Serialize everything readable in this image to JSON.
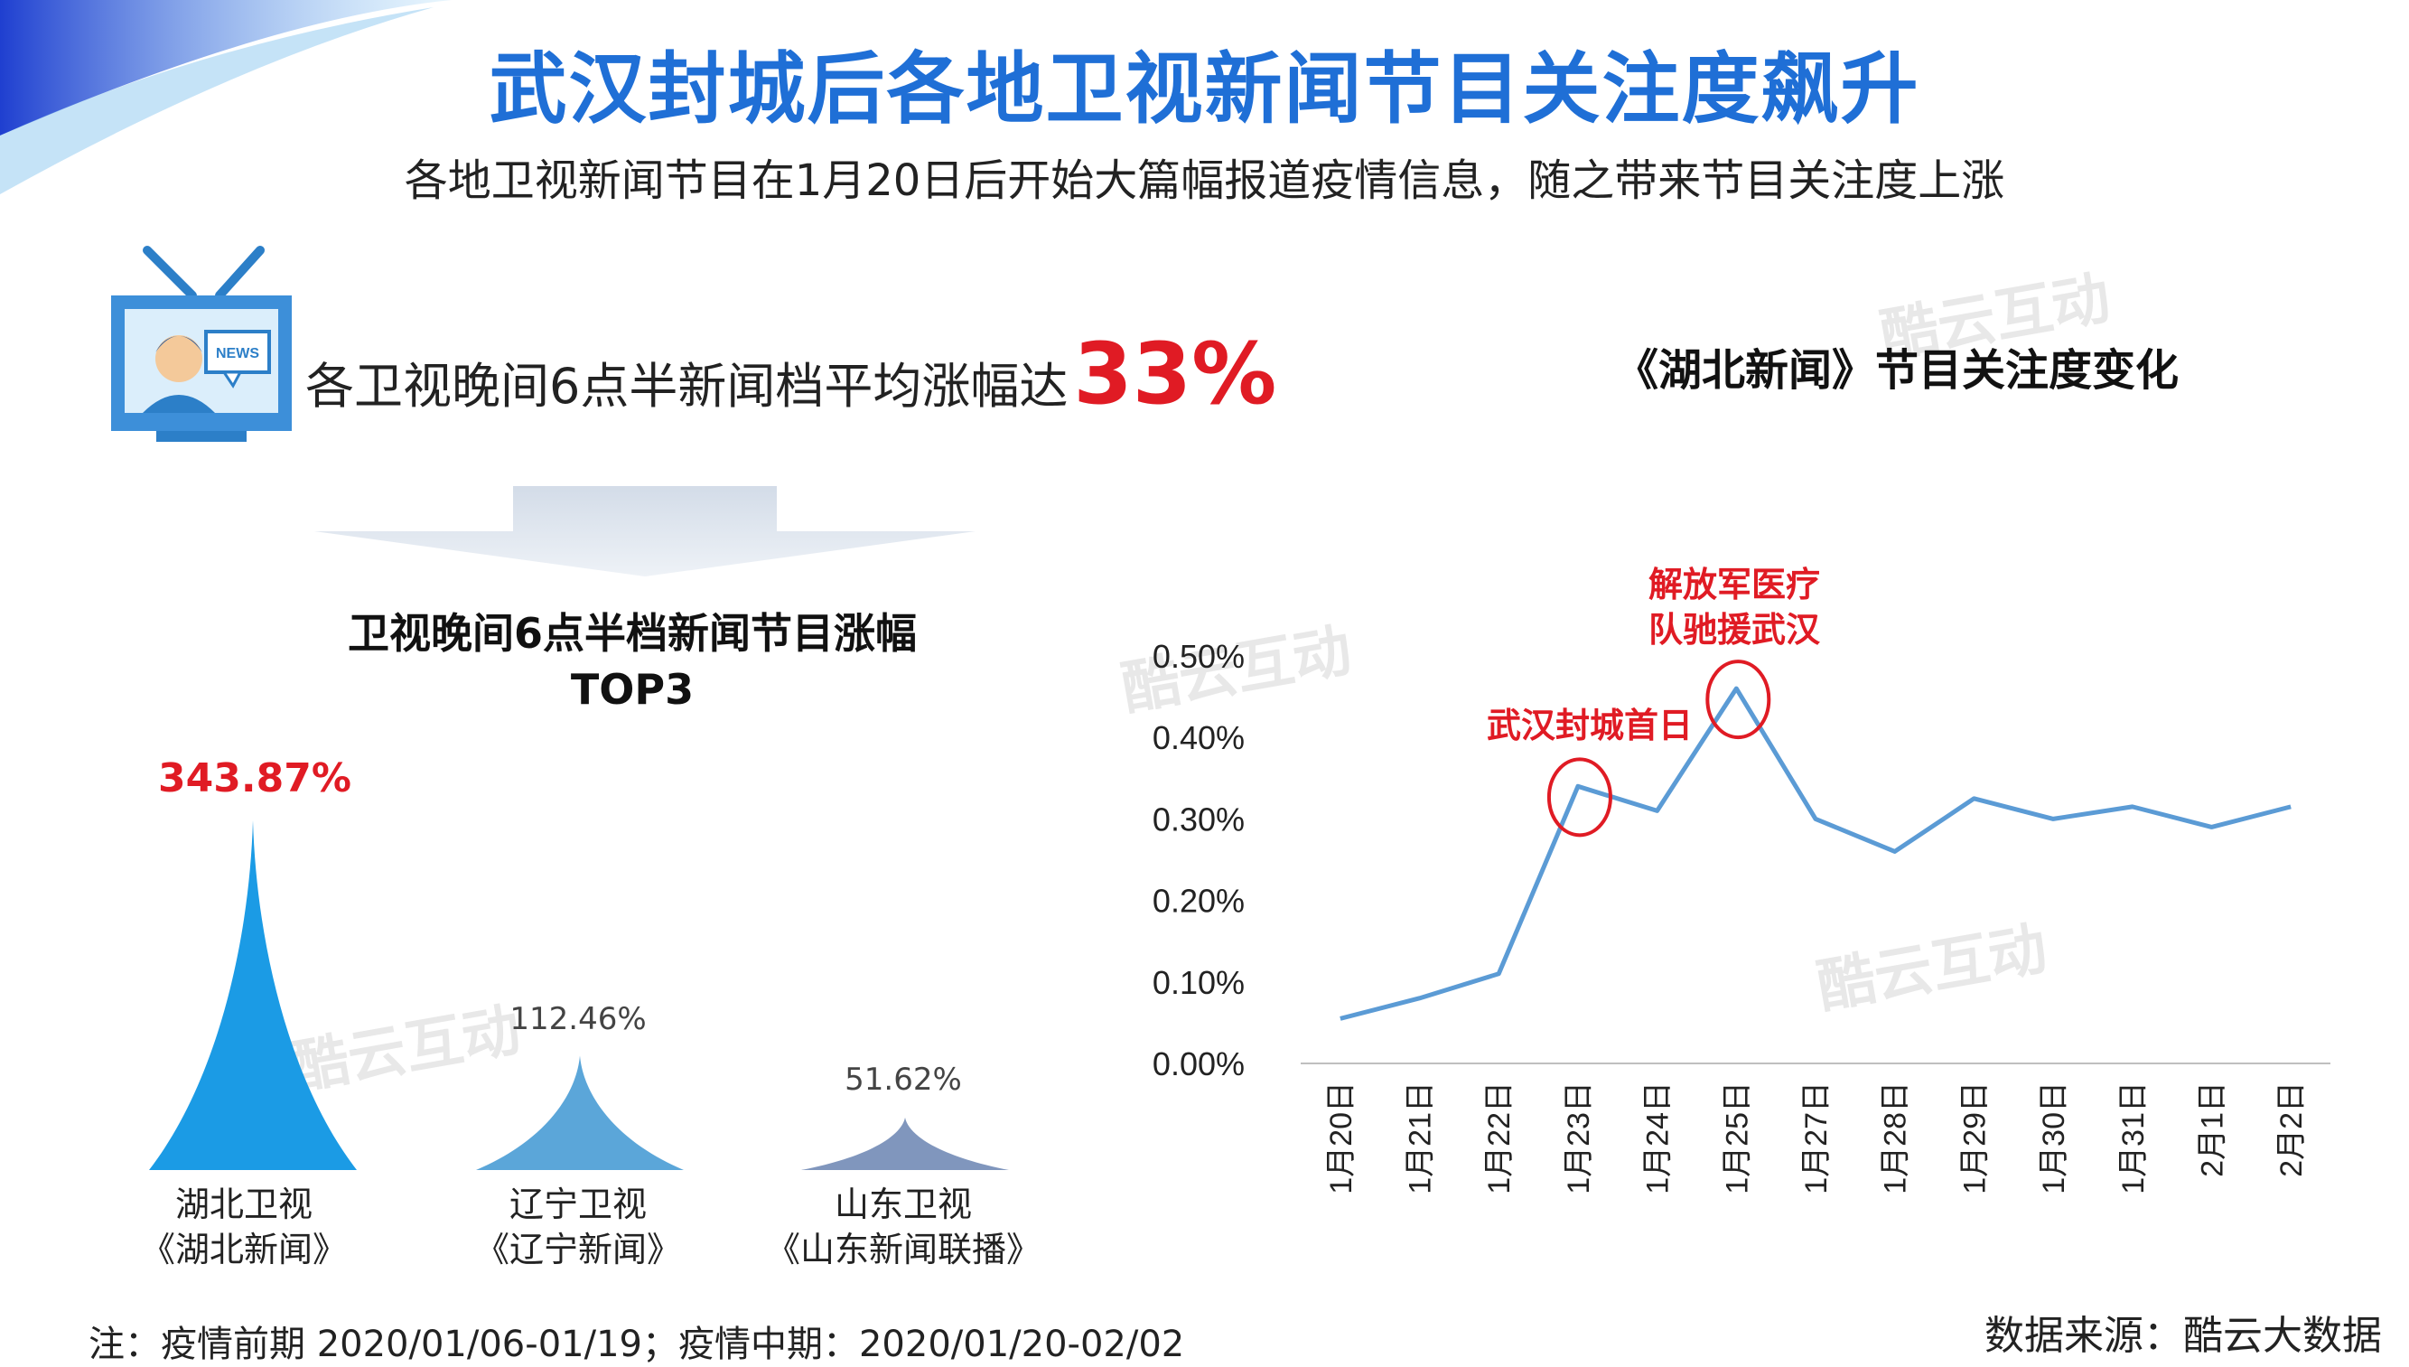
{
  "title": "武汉封城后各地卫视新闻节目关注度飙升",
  "subtitle": "各地卫视新闻节目在1月20日后开始大篇幅报道疫情信息，随之带来节目关注度上涨",
  "headline": {
    "text": "各卫视晚间6点半新闻档平均涨幅达",
    "value": "33%"
  },
  "tv_icon": {
    "badge": "NEWS"
  },
  "watermark": "酷云互动",
  "left_panel": {
    "title_line1": "卫视晚间6点半档新闻节目涨幅",
    "title_line2": "TOP3"
  },
  "right_panel": {
    "title": "《湖北新闻》节目关注度变化"
  },
  "annotations": {
    "lockdown": "武汉封城首日",
    "pla_line1": "解放军医疗",
    "pla_line2": "队驰援武汉"
  },
  "note": "注：疫情前期 2020/01/06-01/19；疫情中期：2020/01/20-02/02",
  "source": "数据来源：酷云大数据",
  "colors": {
    "title": "#1f6fd6",
    "highlight": "#e01b24",
    "line": "#5b9bd5",
    "bar1": "#1b9be5",
    "bar2": "#5ba6d9",
    "bar3": "#8096bd"
  },
  "chart_data": [
    {
      "type": "bar",
      "title": "卫视晚间6点半档新闻节目涨幅 TOP3",
      "categories": [
        "湖北卫视《湖北新闻》",
        "辽宁卫视《辽宁新闻》",
        "山东卫视《山东新闻联播》"
      ],
      "category_lines": [
        [
          "湖北卫视",
          "《湖北新闻》"
        ],
        [
          "辽宁卫视",
          "《辽宁新闻》"
        ],
        [
          "山东卫视",
          "《山东新闻联播》"
        ]
      ],
      "values": [
        343.87,
        112.46,
        51.62
      ],
      "value_labels": [
        "343.87%",
        "112.46%",
        "51.62%"
      ],
      "unit": "%"
    },
    {
      "type": "line",
      "title": "《湖北新闻》节目关注度变化",
      "x": [
        "1月20日",
        "1月21日",
        "1月22日",
        "1月23日",
        "1月24日",
        "1月25日",
        "1月27日",
        "1月28日",
        "1月29日",
        "1月30日",
        "1月31日",
        "2月1日",
        "2月2日"
      ],
      "series": [
        {
          "values": [
            0.055,
            0.08,
            0.11,
            0.34,
            0.31,
            0.46,
            0.3,
            0.26,
            0.325,
            0.3,
            0.315,
            0.29,
            0.315
          ]
        }
      ],
      "yticks": [
        "0.00%",
        "0.10%",
        "0.20%",
        "0.30%",
        "0.40%",
        "0.50%"
      ],
      "ylim": [
        0,
        0.5
      ],
      "grid": false,
      "highlight_points": [
        3,
        5
      ]
    }
  ]
}
